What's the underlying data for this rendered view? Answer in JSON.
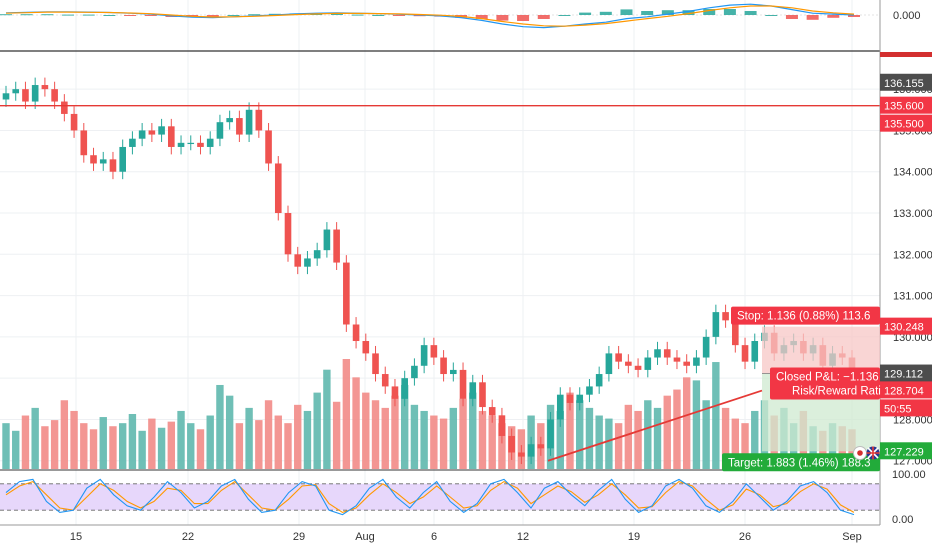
{
  "colors": {
    "up": "#26a69a",
    "down": "#ef5350",
    "vol_up": "#5fb8ae",
    "vol_down": "#f28b87",
    "resistance": "#e53935",
    "stop_zone": "#f7c7c6",
    "target_zone": "#cfead0",
    "stoch_band": "#e7d7fb",
    "macd_line": "#2196f3",
    "signal_line": "#ff9800",
    "stop_tag": "#f23645",
    "target_tag": "#22ab3a",
    "trend": "#e53935",
    "scale_dark": "#4d4d4d"
  },
  "chart_data": [
    {
      "type": "bar",
      "title": "",
      "panel": "macd",
      "ylim": [
        -1,
        1
      ],
      "scale_labels": [
        "0.000"
      ],
      "series": [
        {
          "values": [
            0.12,
            0.15,
            0.18,
            0.17,
            0.16,
            0.14,
            0.1,
            0.05,
            -0.05,
            -0.12,
            -0.15,
            -0.1,
            -0.05,
            0,
            0.06,
            0.1,
            0.12,
            0.1,
            0.08,
            0.04,
            0,
            -0.05,
            -0.15,
            -0.3,
            -0.5,
            -0.65,
            -0.7,
            -0.62,
            -0.5,
            -0.4,
            -0.2,
            -0.1,
            0.05,
            0.2,
            0.4,
            0.55,
            0.6,
            0.5,
            0.3,
            0.1,
            0.05,
            0
          ]
        },
        {
          "values": [
            0.1,
            0.13,
            0.16,
            0.16,
            0.15,
            0.14,
            0.11,
            0.07,
            0,
            -0.07,
            -0.11,
            -0.1,
            -0.07,
            -0.03,
            0.02,
            0.06,
            0.09,
            0.09,
            0.08,
            0.06,
            0.03,
            -0.01,
            -0.08,
            -0.2,
            -0.36,
            -0.5,
            -0.6,
            -0.62,
            -0.56,
            -0.48,
            -0.34,
            -0.2,
            -0.07,
            0.08,
            0.25,
            0.4,
            0.5,
            0.5,
            0.4,
            0.22,
            0.12,
            0.05
          ]
        }
      ]
    },
    {
      "type": "line",
      "title": "",
      "panel": "price",
      "x_tick_labels": [
        "15",
        "22",
        "29",
        "Aug",
        "6",
        "12",
        "19",
        "26",
        "Sep"
      ],
      "ylim": [
        126.8,
        136.9
      ],
      "y_ticks": [
        127.0,
        128.0,
        129.0,
        130.0,
        131.0,
        132.0,
        133.0,
        134.0,
        135.0,
        136.0
      ],
      "resistance_level": 135.6,
      "price_tags": [
        "136.155",
        "135.600",
        "135.500",
        "130.248",
        "129.112",
        "128.704",
        "50:55",
        "127.229"
      ],
      "annotations": {
        "stop": "Stop: 1.136 (0.88%) 113.6",
        "closed": "Closed P&L: −1.136",
        "risk": "Risk/Reward Rati",
        "target": "Target: 1.883 (1.46%) 188.3"
      },
      "position": {
        "entry": 129.112,
        "stop": 130.248,
        "target": 127.229
      },
      "trend_line": {
        "from": 127.0,
        "to": 128.7
      },
      "series": [
        {
          "close": [
            135.9,
            136.0,
            135.7,
            136.1,
            136.0,
            135.7,
            135.4,
            135.0,
            134.4,
            134.2,
            134.3,
            134.0,
            134.6,
            134.8,
            135.0,
            134.9,
            135.1,
            134.6,
            134.7,
            134.7,
            134.6,
            134.8,
            135.2,
            135.3,
            134.9,
            135.5,
            135.0,
            134.2,
            133.0,
            132.0,
            131.7,
            131.9,
            132.1,
            132.6,
            131.8,
            130.3,
            129.9,
            129.6,
            129.1,
            128.8,
            128.5,
            129.0,
            129.3,
            129.8,
            129.5,
            129.1,
            129.2,
            128.5,
            128.9,
            128.3,
            128.1,
            127.6,
            127.2,
            127.1,
            127.4,
            127.3,
            128.0,
            128.6,
            128.4,
            128.6,
            128.8,
            129.1,
            129.6,
            129.4,
            129.3,
            129.2,
            129.5,
            129.7,
            129.5,
            129.4,
            129.3,
            129.5,
            130.0,
            130.6,
            130.4,
            129.8,
            129.4,
            129.9,
            130.1,
            129.6,
            129.8,
            129.9,
            129.6,
            129.8,
            129.3,
            129.6,
            129.5,
            129.2
          ]
        },
        {
          "volume": [
            30,
            25,
            35,
            40,
            28,
            32,
            45,
            38,
            30,
            26,
            34,
            28,
            30,
            36,
            25,
            33,
            27,
            31,
            38,
            30,
            26,
            35,
            55,
            48,
            30,
            40,
            32,
            45,
            35,
            30,
            42,
            38,
            50,
            65,
            44,
            72,
            60,
            50,
            45,
            40,
            48,
            55,
            42,
            38,
            35,
            33,
            40,
            46,
            50,
            38,
            35,
            30,
            28,
            26,
            35,
            30,
            42,
            38,
            50,
            45,
            40,
            35,
            33,
            30,
            42,
            38,
            45,
            40,
            48,
            52,
            60,
            58,
            45,
            70,
            40,
            33,
            30,
            38,
            45,
            35,
            40,
            30,
            38,
            28,
            25,
            30,
            28,
            26
          ]
        }
      ]
    },
    {
      "type": "line",
      "title": "",
      "panel": "stochastic",
      "ylim": [
        0,
        100
      ],
      "y_tick_labels": [
        "100.00",
        "0.00"
      ],
      "levels": [
        80,
        20
      ],
      "series": [
        {
          "values": [
            60,
            85,
            90,
            40,
            15,
            20,
            70,
            90,
            55,
            30,
            20,
            50,
            85,
            60,
            25,
            40,
            75,
            90,
            45,
            15,
            20,
            60,
            85,
            75,
            20,
            10,
            30,
            70,
            90,
            50,
            25,
            60,
            85,
            40,
            15,
            35,
            80,
            90,
            60,
            25,
            70,
            85,
            55,
            30,
            65,
            90,
            45,
            15,
            30,
            75,
            90,
            70,
            30,
            15,
            40,
            80,
            50,
            20,
            40,
            75,
            85,
            60,
            20,
            10
          ]
        },
        {
          "values": [
            55,
            75,
            85,
            55,
            25,
            20,
            50,
            80,
            65,
            40,
            25,
            40,
            70,
            65,
            35,
            35,
            65,
            85,
            55,
            25,
            20,
            45,
            75,
            78,
            35,
            15,
            25,
            55,
            80,
            60,
            35,
            50,
            75,
            50,
            25,
            30,
            65,
            85,
            70,
            35,
            55,
            75,
            62,
            38,
            55,
            80,
            55,
            25,
            28,
            60,
            85,
            75,
            45,
            20,
            32,
            68,
            55,
            28,
            35,
            62,
            80,
            68,
            32,
            15
          ]
        }
      ]
    }
  ]
}
